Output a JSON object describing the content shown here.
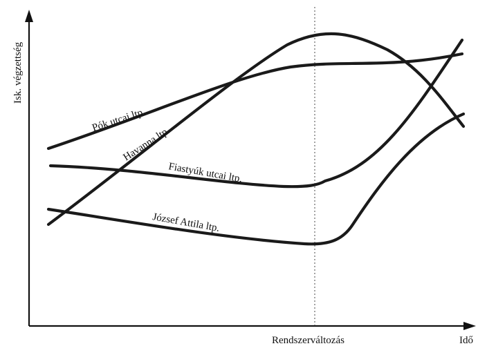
{
  "diagram": {
    "y_axis_label": "Isk. végzettség",
    "x_axis_label": "Idő",
    "divider_label": "Rendszerváltozás",
    "curves": [
      {
        "id": "pok",
        "label": "Pók utcai ltp."
      },
      {
        "id": "havanna",
        "label": "Havanna ltp."
      },
      {
        "id": "fiastyuk",
        "label": "Fiastyúk utcai ltp."
      },
      {
        "id": "jozsef",
        "label": "József Attila ltp."
      }
    ]
  }
}
